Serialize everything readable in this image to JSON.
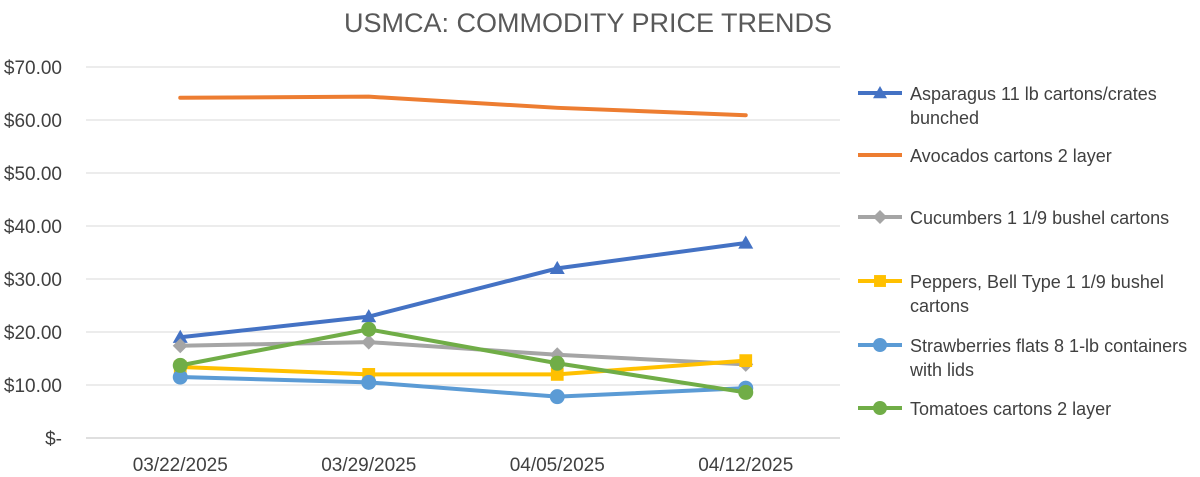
{
  "chart_data": {
    "type": "line",
    "title": "USMCA: COMMODITY PRICE TRENDS",
    "categories": [
      "03/22/2025",
      "03/29/2025",
      "04/05/2025",
      "04/12/2025"
    ],
    "ylim": [
      0,
      70
    ],
    "yticks": [
      0,
      10,
      20,
      30,
      40,
      50,
      60,
      70
    ],
    "ytick_labels": [
      "$-",
      "$10.00",
      "$20.00",
      "$30.00",
      "$40.00",
      "$50.00",
      "$60.00",
      "$70.00"
    ],
    "grid": true,
    "legend_position": "right",
    "series": [
      {
        "name": "Asparagus 11 lb cartons/crates bunched",
        "legend_lines": [
          "Asparagus 11 lb cartons/crates",
          "bunched"
        ],
        "values": [
          19.0,
          22.9,
          32.0,
          36.8
        ],
        "color": "#4472C4",
        "marker": "triangle"
      },
      {
        "name": "Avocados cartons 2 layer",
        "legend_lines": [
          "Avocados cartons 2 layer"
        ],
        "values": [
          64.2,
          64.4,
          62.3,
          60.9
        ],
        "color": "#ED7D31",
        "marker": "none"
      },
      {
        "name": "Cucumbers 1 1/9 bushel cartons",
        "legend_lines": [
          "Cucumbers 1 1/9 bushel cartons"
        ],
        "values": [
          17.4,
          18.1,
          15.7,
          13.9
        ],
        "color": "#A5A5A5",
        "marker": "diamond"
      },
      {
        "name": "Peppers, Bell Type 1 1/9 bushel cartons",
        "legend_lines": [
          "Peppers, Bell Type 1 1/9 bushel",
          "cartons"
        ],
        "values": [
          13.4,
          12.0,
          12.0,
          14.6
        ],
        "color": "#FFC000",
        "marker": "square"
      },
      {
        "name": "Strawberries flats 8 1-lb containers with lids",
        "legend_lines": [
          "Strawberries flats 8 1-lb containers",
          "with lids"
        ],
        "values": [
          11.5,
          10.5,
          7.8,
          9.4
        ],
        "color": "#5B9BD5",
        "marker": "circle"
      },
      {
        "name": "Tomatoes cartons 2 layer",
        "legend_lines": [
          "Tomatoes cartons 2 layer"
        ],
        "values": [
          13.7,
          20.5,
          14.1,
          8.6
        ],
        "color": "#70AD47",
        "marker": "circle"
      }
    ]
  }
}
